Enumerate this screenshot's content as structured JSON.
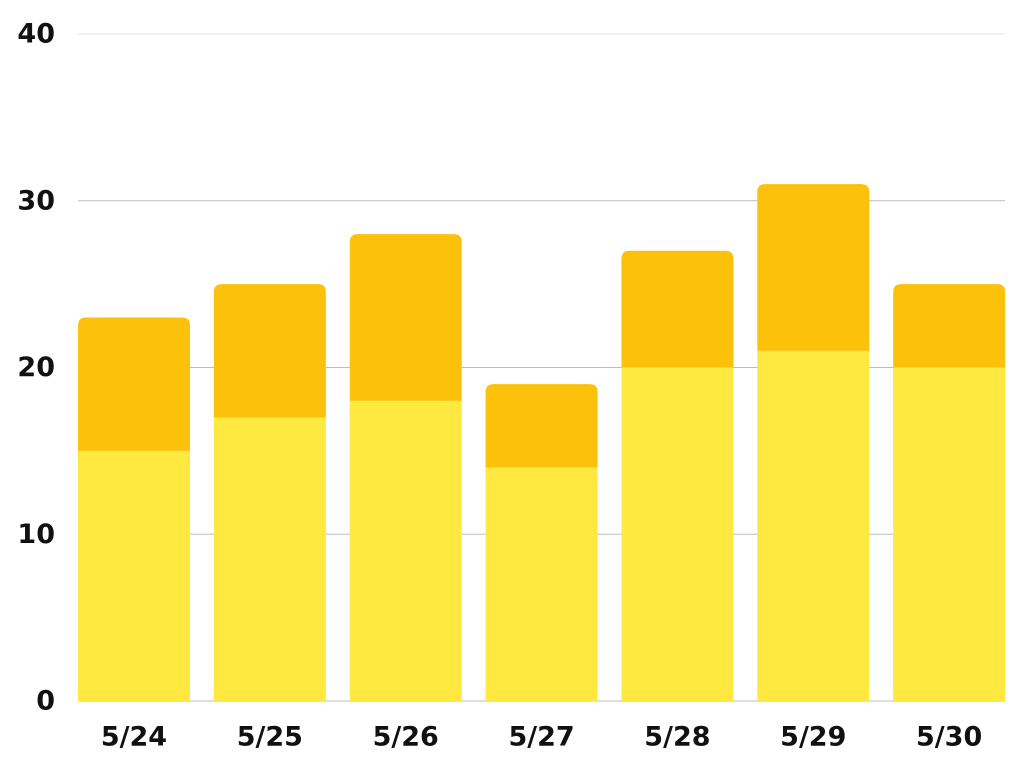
{
  "chart_data": {
    "type": "bar",
    "stacked": true,
    "title": "",
    "xlabel": "",
    "ylabel": "",
    "categories": [
      "5/24",
      "5/25",
      "5/26",
      "5/27",
      "5/28",
      "5/29",
      "5/30"
    ],
    "series": [
      {
        "color": "#FFE83F",
        "values": [
          15,
          17,
          18,
          14,
          20,
          21,
          20
        ]
      },
      {
        "color": "#FCC10A",
        "values": [
          8,
          8,
          10,
          5,
          7,
          10,
          5
        ]
      }
    ],
    "ylim": [
      0,
      40
    ],
    "yticks": [
      0,
      10,
      20,
      30,
      40
    ],
    "grid": true,
    "legend": "none"
  }
}
